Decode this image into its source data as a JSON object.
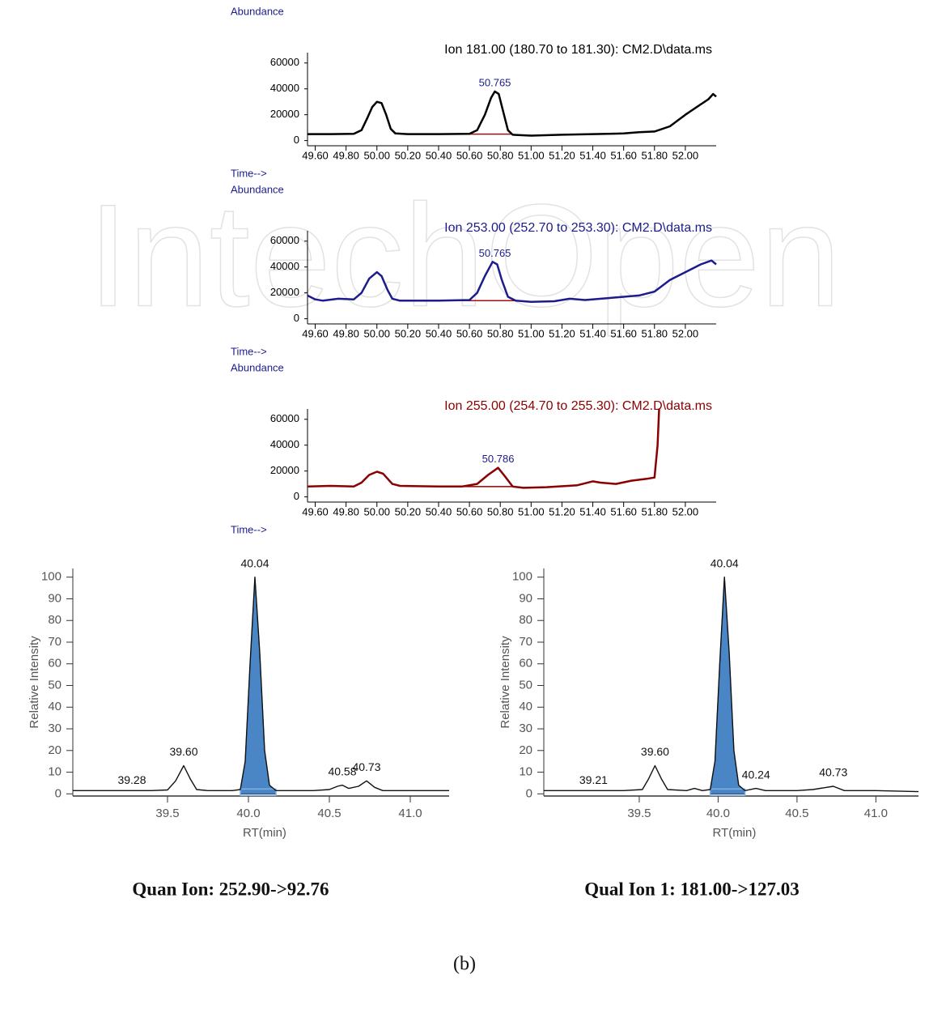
{
  "watermark": "IntechOpen",
  "caption": "(b)",
  "chart_data": [
    {
      "type": "line",
      "title": "Ion 181.00 (180.70 to 181.30): CM2.D\\data.ms",
      "ylabel": "Abundance",
      "xlabel": "Time-->",
      "color": "#000000",
      "xlim": [
        49.55,
        52.2
      ],
      "ylim": [
        -4000,
        68000
      ],
      "yticks": [
        0,
        20000,
        40000,
        60000
      ],
      "xticks": [
        {
          "value": 49.6,
          "label": "49.60"
        },
        {
          "value": 49.8,
          "label": "49.80"
        },
        {
          "value": 50,
          "label": "50.00"
        },
        {
          "value": 50.2,
          "label": "50.20"
        },
        {
          "value": 50.4,
          "label": "50.40"
        },
        {
          "value": 50.6,
          "label": "50.60"
        },
        {
          "value": 50.8,
          "label": "50.80"
        },
        {
          "value": 51,
          "label": "51.00"
        },
        {
          "value": 51.2,
          "label": "51.20"
        },
        {
          "value": 51.4,
          "label": "51.40"
        },
        {
          "value": 51.6,
          "label": "51.60"
        },
        {
          "value": 51.8,
          "label": "51.80"
        },
        {
          "value": 52,
          "label": "52.00"
        }
      ],
      "x": [
        49.55,
        49.7,
        49.85,
        49.9,
        49.94,
        49.97,
        50.0,
        50.03,
        50.06,
        50.09,
        50.12,
        50.2,
        50.4,
        50.6,
        50.65,
        50.7,
        50.74,
        50.765,
        50.79,
        50.82,
        50.85,
        50.88,
        51.0,
        51.2,
        51.4,
        51.6,
        51.7,
        51.8,
        51.9,
        52.0,
        52.1,
        52.15,
        52.18,
        52.2
      ],
      "values": [
        5000,
        5000,
        5200,
        8000,
        18000,
        26000,
        30000,
        29000,
        20000,
        9000,
        5500,
        5000,
        5000,
        5200,
        8000,
        20000,
        33000,
        38000,
        36000,
        22000,
        8000,
        4500,
        3800,
        4500,
        5000,
        5500,
        6500,
        7000,
        11000,
        20000,
        28000,
        32000,
        36000,
        34000
      ],
      "baseline": {
        "x": [
          50.6,
          50.88
        ],
        "values": [
          5000,
          5000
        ],
        "color": "#a01010"
      },
      "peak_labels": [
        50.765
      ]
    },
    {
      "type": "line",
      "title": "Ion 253.00 (252.70 to 253.30): CM2.D\\data.ms",
      "ylabel": "Abundance",
      "xlabel": "Time-->",
      "color": "#1c1c8c",
      "xlim": [
        49.55,
        52.2
      ],
      "ylim": [
        -4000,
        68000
      ],
      "yticks": [
        0,
        20000,
        40000,
        60000
      ],
      "xticks": [
        {
          "value": 49.6,
          "label": "49.60"
        },
        {
          "value": 49.8,
          "label": "49.80"
        },
        {
          "value": 50,
          "label": "50.00"
        },
        {
          "value": 50.2,
          "label": "50.20"
        },
        {
          "value": 50.4,
          "label": "50.40"
        },
        {
          "value": 50.6,
          "label": "50.60"
        },
        {
          "value": 50.8,
          "label": "50.80"
        },
        {
          "value": 51,
          "label": "51.00"
        },
        {
          "value": 51.2,
          "label": "51.20"
        },
        {
          "value": 51.4,
          "label": "51.40"
        },
        {
          "value": 51.6,
          "label": "51.60"
        },
        {
          "value": 51.8,
          "label": "51.80"
        },
        {
          "value": 52,
          "label": "52.00"
        }
      ],
      "x": [
        49.55,
        49.6,
        49.65,
        49.75,
        49.85,
        49.9,
        49.95,
        50.0,
        50.03,
        50.07,
        50.1,
        50.15,
        50.4,
        50.6,
        50.65,
        50.7,
        50.75,
        50.78,
        50.81,
        50.85,
        50.9,
        51.0,
        51.15,
        51.25,
        51.35,
        51.5,
        51.7,
        51.8,
        51.9,
        52.0,
        52.1,
        52.17,
        52.2
      ],
      "values": [
        18000,
        15000,
        14000,
        15500,
        15000,
        20000,
        31000,
        36000,
        33000,
        22000,
        15500,
        14000,
        14000,
        14500,
        20000,
        33000,
        44000,
        42000,
        30000,
        17000,
        14000,
        13000,
        13500,
        15500,
        14500,
        16000,
        18000,
        21000,
        30000,
        36000,
        42000,
        45000,
        42000
      ],
      "baseline": {
        "x": [
          50.2,
          50.92
        ],
        "values": [
          14000,
          14000
        ],
        "color": "#a01010"
      },
      "peak_labels": [
        50.765
      ]
    },
    {
      "type": "line",
      "title": "Ion 255.00 (254.70 to 255.30): CM2.D\\data.ms",
      "ylabel": "Abundance",
      "xlabel": "Time-->",
      "color": "#8b0000",
      "xlim": [
        49.55,
        52.2
      ],
      "ylim": [
        -4000,
        68000
      ],
      "yticks": [
        0,
        20000,
        40000,
        60000
      ],
      "xticks": [
        {
          "value": 49.6,
          "label": "49.60"
        },
        {
          "value": 49.8,
          "label": "49.80"
        },
        {
          "value": 50,
          "label": "50.00"
        },
        {
          "value": 50.2,
          "label": "50.20"
        },
        {
          "value": 50.4,
          "label": "50.40"
        },
        {
          "value": 50.6,
          "label": "50.60"
        },
        {
          "value": 50.8,
          "label": "50.80"
        },
        {
          "value": 51,
          "label": "51.00"
        },
        {
          "value": 51.2,
          "label": "51.20"
        },
        {
          "value": 51.4,
          "label": "51.40"
        },
        {
          "value": 51.6,
          "label": "51.60"
        },
        {
          "value": 51.8,
          "label": "51.80"
        },
        {
          "value": 52,
          "label": "52.00"
        }
      ],
      "x": [
        49.55,
        49.7,
        49.85,
        49.9,
        49.95,
        50.0,
        50.04,
        50.1,
        50.15,
        50.4,
        50.55,
        50.65,
        50.72,
        50.786,
        50.83,
        50.88,
        50.95,
        51.1,
        51.3,
        51.4,
        51.45,
        51.55,
        51.65,
        51.75,
        51.8,
        51.82,
        51.83
      ],
      "values": [
        8000,
        8500,
        8000,
        11000,
        17000,
        19500,
        18000,
        10000,
        8500,
        8000,
        8000,
        10000,
        17000,
        22500,
        16000,
        8000,
        7000,
        7500,
        9000,
        12000,
        11000,
        10000,
        12500,
        14000,
        15000,
        40000,
        68000
      ],
      "baseline": {
        "x": [
          50.55,
          50.9
        ],
        "values": [
          8000,
          8000
        ],
        "color": "#8b0000"
      },
      "peak_labels": [
        50.786
      ]
    },
    {
      "type": "area-peak",
      "title": "Quan Ion: 252.90->92.76",
      "ylabel": "Relative Intensity",
      "xlabel": "RT(min)",
      "color": "#111111",
      "xlim": [
        38.915,
        41.24
      ],
      "ylim": [
        -1,
        104
      ],
      "yticks": [
        0,
        10,
        20,
        30,
        40,
        50,
        60,
        70,
        80,
        90,
        100
      ],
      "xticks": [
        {
          "value": 39.5,
          "label": "39.5"
        },
        {
          "value": 40,
          "label": "40.0"
        },
        {
          "value": 40.5,
          "label": "40.5"
        },
        {
          "value": 41,
          "label": "41.0"
        }
      ],
      "x": [
        38.915,
        39.4,
        39.5,
        39.55,
        39.6,
        39.64,
        39.68,
        39.75,
        39.9,
        39.95,
        39.98,
        40.01,
        40.04,
        40.07,
        40.1,
        40.13,
        40.17,
        40.4,
        40.5,
        40.55,
        40.58,
        40.62,
        40.68,
        40.73,
        40.78,
        40.83,
        41.24
      ],
      "values": [
        1.5,
        1.5,
        1.8,
        6,
        13,
        7,
        2,
        1.5,
        1.5,
        2,
        15,
        60,
        100,
        65,
        20,
        4,
        1.5,
        1.5,
        2,
        3.5,
        4,
        2.5,
        3.5,
        6,
        3,
        1.5,
        1.5
      ],
      "fill": {
        "range": [
          39.95,
          40.17
        ],
        "color": "#4a86c5"
      },
      "peak_labels": [
        40.04,
        {
          "value": 39.6,
          "label": "39.60"
        },
        39.28,
        40.58,
        40.73
      ]
    },
    {
      "type": "area-peak",
      "title": "Qual Ion 1: 181.00->127.03",
      "ylabel": "Relative Intensity",
      "xlabel": "RT(min)",
      "color": "#111111",
      "xlim": [
        38.895,
        41.27
      ],
      "ylim": [
        -1,
        104
      ],
      "yticks": [
        0,
        10,
        20,
        30,
        40,
        50,
        60,
        70,
        80,
        90,
        100
      ],
      "xticks": [
        {
          "value": 39.5,
          "label": "39.5"
        },
        {
          "value": 40,
          "label": "40.0"
        },
        {
          "value": 40.5,
          "label": "40.5"
        },
        {
          "value": 41,
          "label": "41.0"
        }
      ],
      "x": [
        38.895,
        39.4,
        39.52,
        39.56,
        39.6,
        39.64,
        39.68,
        39.8,
        39.85,
        39.9,
        39.95,
        39.98,
        40.01,
        40.04,
        40.07,
        40.1,
        40.13,
        40.17,
        40.24,
        40.3,
        40.5,
        40.6,
        40.73,
        40.8,
        41.0,
        41.27
      ],
      "values": [
        1.5,
        1.5,
        2,
        7,
        13,
        7,
        2,
        1.5,
        2.5,
        1.5,
        2,
        15,
        60,
        100,
        65,
        20,
        4,
        1.5,
        2.5,
        1.5,
        1.5,
        2,
        3.5,
        1.5,
        1.5,
        1
      ],
      "fill": {
        "range": [
          39.95,
          40.17
        ],
        "color": "#4a86c5"
      },
      "peak_labels": [
        40.04,
        {
          "value": 39.6,
          "label": "39.60"
        },
        39.21,
        40.24,
        40.73
      ]
    }
  ]
}
